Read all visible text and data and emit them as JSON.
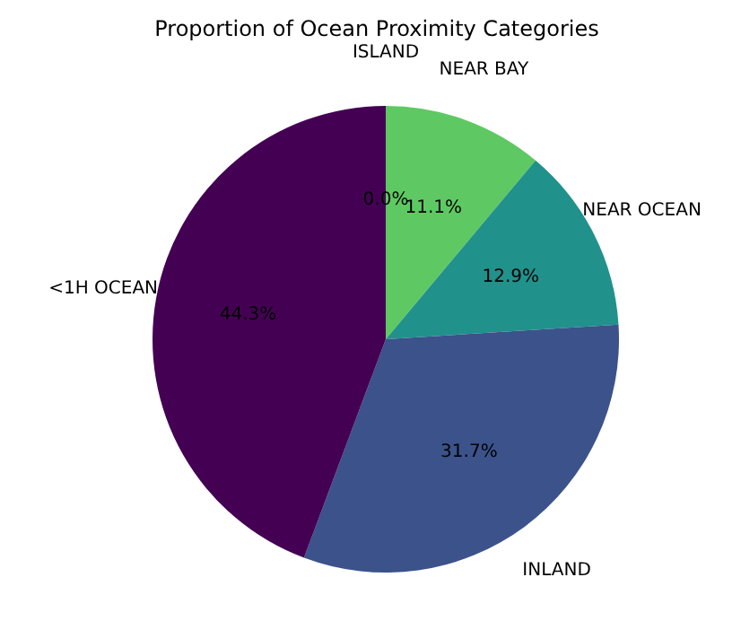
{
  "chart_data": {
    "type": "pie",
    "title": "Proportion of Ocean Proximity Categories",
    "categories": [
      "ISLAND",
      "NEAR BAY",
      "NEAR OCEAN",
      "INLAND",
      "<1H OCEAN"
    ],
    "values": [
      0.0,
      11.1,
      12.9,
      31.7,
      44.3
    ],
    "colors": [
      "#fde725",
      "#5ec962",
      "#21918c",
      "#3b528b",
      "#440154"
    ],
    "value_labels": [
      "0.0%",
      "11.1%",
      "12.9%",
      "31.7%",
      "44.3%"
    ]
  }
}
